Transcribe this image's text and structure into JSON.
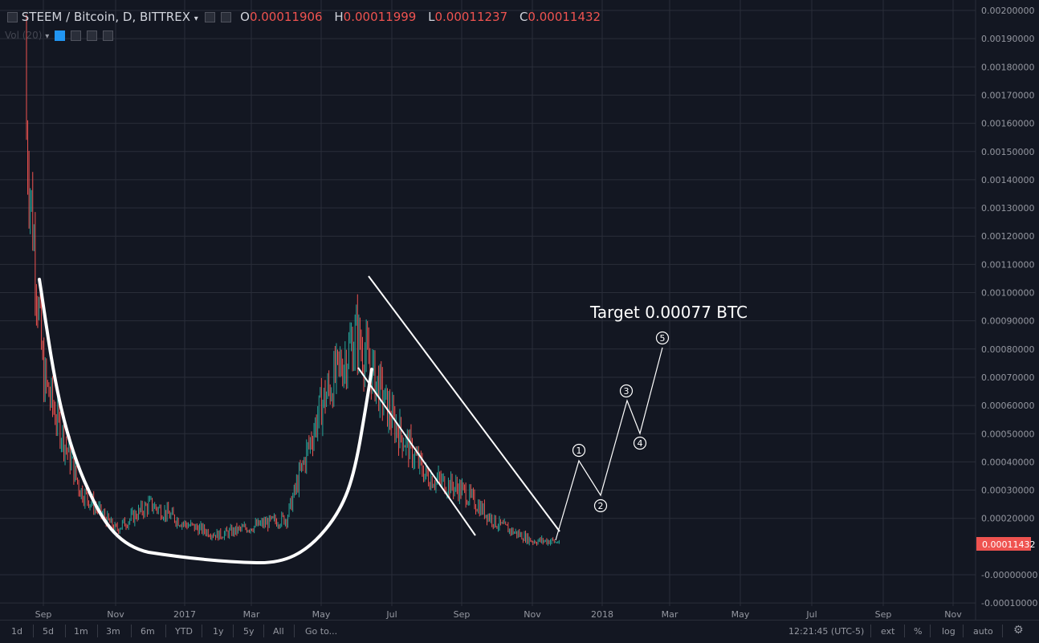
{
  "header": {
    "symbol": "STEEM / Bitcoin, D, BITTREX",
    "o_label": "O",
    "o_value": "0.00011906",
    "h_label": "H",
    "h_value": "0.00011999",
    "l_label": "L",
    "l_value": "0.00011237",
    "c_label": "C",
    "c_value": "0.00011432",
    "volume_label": "Vol (20)"
  },
  "price_scale": {
    "ticks": [
      "0.00200000",
      "0.00190000",
      "0.00180000",
      "0.00170000",
      "0.00160000",
      "0.00150000",
      "0.00140000",
      "0.00130000",
      "0.00120000",
      "0.00110000",
      "0.00100000",
      "0.00090000",
      "0.00080000",
      "0.00070000",
      "0.00060000",
      "0.00050000",
      "0.00040000",
      "0.00030000",
      "0.00020000",
      "-0.00000000",
      "-0.00010000"
    ],
    "last_price": "0.00011432"
  },
  "time_axis": {
    "labels": [
      "Sep",
      "Nov",
      "2017",
      "Mar",
      "May",
      "Jul",
      "Sep",
      "Nov",
      "2018",
      "Mar",
      "May",
      "Jul",
      "Sep",
      "Nov"
    ]
  },
  "annotations": {
    "target_text": "Target 0.00077 BTC",
    "wave_labels": [
      "1",
      "2",
      "3",
      "4",
      "5"
    ]
  },
  "bottom_bar": {
    "ranges": [
      "1d",
      "5d",
      "1m",
      "3m",
      "6m",
      "YTD",
      "1y",
      "5y",
      "All"
    ],
    "goto": "Go to...",
    "clock": "12:21:45 (UTC-5)",
    "options": [
      "ext",
      "%",
      "log",
      "auto"
    ]
  },
  "colors": {
    "bg": "#131722",
    "grid": "#2a2e39",
    "up": "#26a69a",
    "down": "#ef5350",
    "text": "#9598a1",
    "drawing": "#ffffff"
  },
  "chart_data": {
    "type": "candlestick",
    "title": "STEEM / Bitcoin, D, BITTREX",
    "ylim": [
      -0.0001,
      0.00203
    ],
    "last_close": 0.00011432,
    "monthly_closes": [
      {
        "x": "2016-08",
        "y": 0.0016
      },
      {
        "x": "2016-09",
        "y": 0.0007
      },
      {
        "x": "2016-10",
        "y": 0.0003
      },
      {
        "x": "2016-11",
        "y": 0.00016
      },
      {
        "x": "2016-12",
        "y": 0.00025
      },
      {
        "x": "2017-01",
        "y": 0.00018
      },
      {
        "x": "2017-02",
        "y": 0.00014
      },
      {
        "x": "2017-03",
        "y": 0.00017
      },
      {
        "x": "2017-04",
        "y": 0.0002
      },
      {
        "x": "2017-05",
        "y": 0.0006
      },
      {
        "x": "2017-06",
        "y": 0.00085
      },
      {
        "x": "2017-07",
        "y": 0.00055
      },
      {
        "x": "2017-08",
        "y": 0.00035
      },
      {
        "x": "2017-09",
        "y": 0.0003
      },
      {
        "x": "2017-10",
        "y": 0.00018
      },
      {
        "x": "2017-11",
        "y": 0.00012
      }
    ],
    "projection": {
      "labels": [
        "1",
        "2",
        "3",
        "4",
        "5"
      ],
      "values": [
        0.00041,
        0.00028,
        0.00062,
        0.0005,
        0.0008
      ],
      "target": 0.00077
    }
  }
}
